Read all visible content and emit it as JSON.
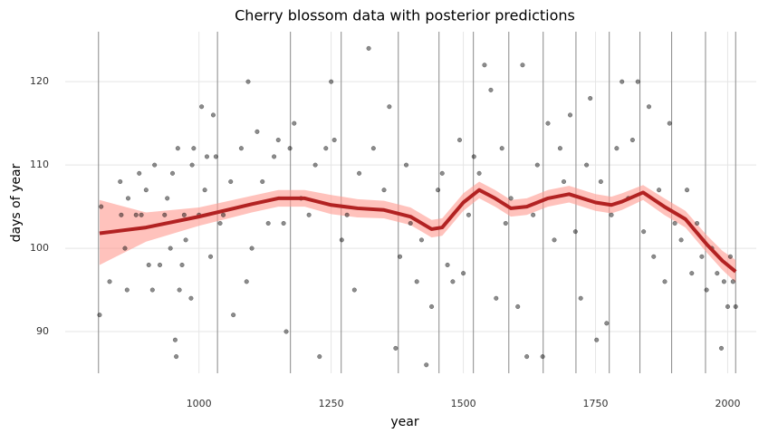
{
  "chart_data": {
    "type": "scatter",
    "title": "Cherry blossom data with posterior predictions",
    "x_label": "year",
    "y_label": "days of year",
    "xlim": [
      747,
      2054
    ],
    "ylim": [
      85,
      126
    ],
    "xticks": [
      1000,
      1250,
      1500,
      1750,
      2000
    ],
    "yticks": [
      90,
      100,
      110,
      120
    ],
    "grid": true,
    "points": {
      "color": "#000000",
      "x": [
        812,
        815,
        831,
        851,
        853,
        860,
        864,
        866,
        881,
        887,
        891,
        900,
        905,
        912,
        916,
        926,
        935,
        940,
        946,
        950,
        955,
        957,
        960,
        963,
        968,
        972,
        975,
        985,
        987,
        990,
        1000,
        1005,
        1011,
        1015,
        1022,
        1027,
        1032,
        1040,
        1046,
        1060,
        1065,
        1080,
        1090,
        1093,
        1100,
        1110,
        1120,
        1131,
        1142,
        1150,
        1160,
        1165,
        1172,
        1180,
        1193,
        1208,
        1220,
        1228,
        1240,
        1250,
        1256,
        1270,
        1280,
        1294,
        1303,
        1321,
        1330,
        1350,
        1360,
        1372,
        1380,
        1392,
        1400,
        1412,
        1421,
        1430,
        1440,
        1452,
        1460,
        1470,
        1480,
        1493,
        1500,
        1510,
        1520,
        1530,
        1540,
        1552,
        1562,
        1573,
        1580,
        1590,
        1603,
        1612,
        1620,
        1632,
        1640,
        1650,
        1660,
        1672,
        1683,
        1690,
        1702,
        1712,
        1722,
        1733,
        1740,
        1752,
        1760,
        1771,
        1780,
        1790,
        1800,
        1812,
        1820,
        1830,
        1841,
        1851,
        1860,
        1870,
        1881,
        1890,
        1900,
        1912,
        1923,
        1932,
        1942,
        1951,
        1960,
        1970,
        1980,
        1988,
        1993,
        2000,
        2005,
        2010,
        2015
      ],
      "y": [
        92,
        105,
        96,
        108,
        104,
        100,
        95,
        106,
        104,
        109,
        104,
        107,
        98,
        95,
        110,
        98,
        104,
        106,
        100,
        109,
        89,
        87,
        112,
        95,
        98,
        104,
        101,
        94,
        110,
        112,
        104,
        117,
        107,
        111,
        99,
        116,
        111,
        103,
        104,
        108,
        92,
        112,
        96,
        120,
        100,
        114,
        108,
        103,
        111,
        113,
        103,
        90,
        112,
        115,
        106,
        104,
        110,
        87,
        112,
        120,
        113,
        101,
        104,
        95,
        109,
        124,
        112,
        107,
        117,
        88,
        99,
        110,
        103,
        96,
        101,
        86,
        93,
        107,
        109,
        98,
        96,
        113,
        97,
        104,
        111,
        109,
        122,
        119,
        94,
        112,
        103,
        106,
        93,
        122,
        87,
        104,
        110,
        87,
        115,
        101,
        112,
        108,
        116,
        102,
        94,
        110,
        118,
        89,
        108,
        91,
        104,
        112,
        120,
        106,
        113,
        120,
        102,
        117,
        99,
        107,
        96,
        115,
        103,
        101,
        107,
        97,
        103,
        99,
        95,
        100,
        97,
        88,
        96,
        93,
        99,
        96,
        93
      ]
    },
    "fit": {
      "color": "#b22222",
      "band_color": "#ff9a8f",
      "x": [
        812,
        900,
        1000,
        1100,
        1150,
        1200,
        1250,
        1300,
        1350,
        1400,
        1440,
        1460,
        1500,
        1530,
        1560,
        1590,
        1620,
        1660,
        1700,
        1750,
        1780,
        1800,
        1840,
        1880,
        1920,
        1960,
        1990,
        2015
      ],
      "mean": [
        101.8,
        102.5,
        103.8,
        105.3,
        106,
        106,
        105.2,
        104.8,
        104.6,
        103.8,
        102.3,
        102.5,
        105.5,
        107,
        106,
        104.8,
        105,
        106,
        106.5,
        105.5,
        105.2,
        105.6,
        106.7,
        105,
        103.5,
        100.5,
        98.5,
        97.2
      ],
      "lower": [
        98,
        100.8,
        102.7,
        104.3,
        105,
        105,
        104.1,
        103.7,
        103.6,
        102.8,
        101.3,
        101.5,
        104.5,
        106,
        105,
        103.8,
        104,
        105,
        105.5,
        104.5,
        104.2,
        104.6,
        105.8,
        104,
        102.5,
        99.5,
        97.4,
        95.9
      ],
      "upper": [
        105.8,
        104.3,
        104.9,
        106.3,
        107,
        107,
        106.4,
        105.9,
        105.7,
        104.9,
        103.4,
        103.6,
        106.6,
        108,
        107,
        105.8,
        106,
        107,
        107.5,
        106.5,
        106.2,
        106.6,
        107.6,
        106,
        104.5,
        101.6,
        99.7,
        98.6
      ]
    },
    "knots": {
      "color": "#888888",
      "x": [
        810,
        1035,
        1173,
        1269,
        1377,
        1454,
        1519,
        1586,
        1651,
        1713,
        1776,
        1834,
        1894,
        1958,
        2015
      ]
    }
  }
}
